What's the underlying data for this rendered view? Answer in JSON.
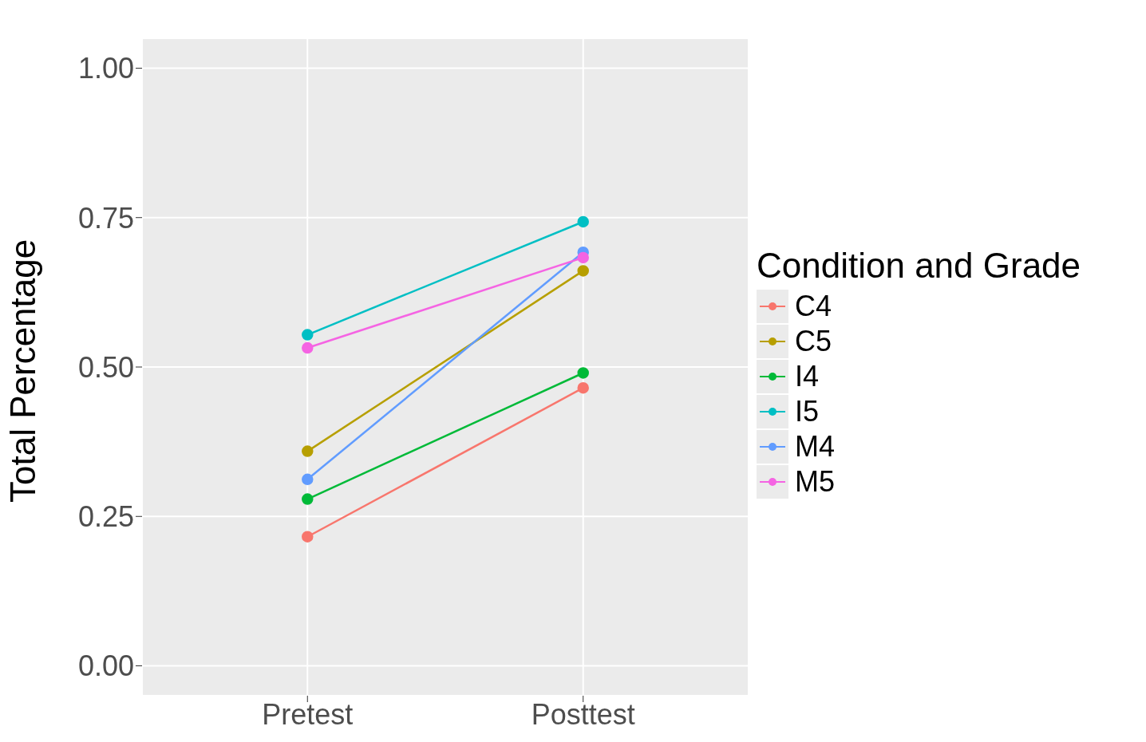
{
  "chart_data": {
    "type": "line",
    "ylabel": "Total Percentage",
    "legend_title": "Condition and Grade",
    "categories": [
      "Pretest",
      "Posttest"
    ],
    "ylim": [
      -0.05,
      1.05
    ],
    "yticks": [
      {
        "value": 0,
        "label": "0.00"
      },
      {
        "value": 0.25,
        "label": "0.25"
      },
      {
        "value": 0.5,
        "label": "0.50"
      },
      {
        "value": 0.75,
        "label": "0.75"
      },
      {
        "value": 1,
        "label": "1.00"
      }
    ],
    "grid": true,
    "legend": "right",
    "marker": "circle",
    "line_style": "solid",
    "series": [
      {
        "name": "C4",
        "color": "#f8766d",
        "values": [
          0.216,
          0.465
        ]
      },
      {
        "name": "C5",
        "color": "#b79f00",
        "values": [
          0.359,
          0.661
        ]
      },
      {
        "name": "I4",
        "color": "#00ba38",
        "values": [
          0.279,
          0.49
        ]
      },
      {
        "name": "I5",
        "color": "#00bfc4",
        "values": [
          0.554,
          0.743
        ]
      },
      {
        "name": "M4",
        "color": "#619cff",
        "values": [
          0.312,
          0.692
        ]
      },
      {
        "name": "M5",
        "color": "#f564e3",
        "values": [
          0.532,
          0.683
        ]
      }
    ]
  }
}
